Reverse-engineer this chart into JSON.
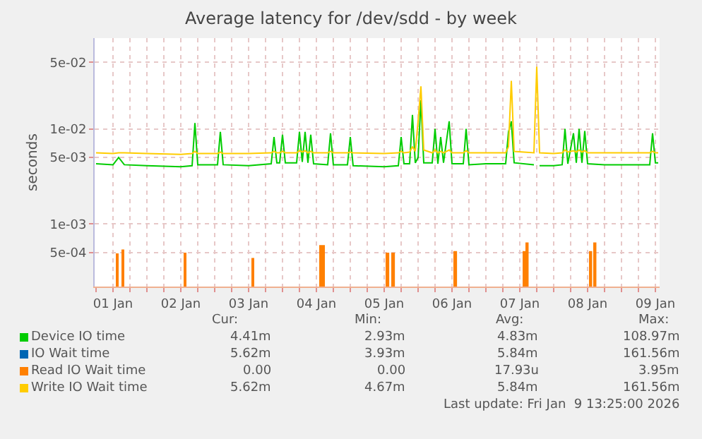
{
  "chart_data": {
    "type": "line",
    "title": "Average latency for /dev/sdd - by week",
    "ylabel": "seconds",
    "log": "y",
    "grid": true,
    "legend": "bottom",
    "line_style": "solid",
    "xlim": [
      "2026-01-01T05:30",
      "2026-01-09T13:30"
    ],
    "xticks": [
      {
        "value": "2026-01-01T06:00",
        "label": null
      },
      {
        "value": "2026-01-01T12:00",
        "label": "01 Jan"
      },
      {
        "value": "2026-01-01T18:00",
        "label": null
      },
      {
        "value": "2026-01-02T00:00",
        "label": null
      },
      {
        "value": "2026-01-02T06:00",
        "label": null
      },
      {
        "value": "2026-01-02T12:00",
        "label": "02 Jan"
      },
      {
        "value": "2026-01-02T18:00",
        "label": null
      },
      {
        "value": "2026-01-03T00:00",
        "label": null
      },
      {
        "value": "2026-01-03T06:00",
        "label": null
      },
      {
        "value": "2026-01-03T12:00",
        "label": "03 Jan"
      },
      {
        "value": "2026-01-03T18:00",
        "label": null
      },
      {
        "value": "2026-01-04T00:00",
        "label": null
      },
      {
        "value": "2026-01-04T06:00",
        "label": null
      },
      {
        "value": "2026-01-04T12:00",
        "label": "04 Jan"
      },
      {
        "value": "2026-01-04T18:00",
        "label": null
      },
      {
        "value": "2026-01-05T00:00",
        "label": null
      },
      {
        "value": "2026-01-05T06:00",
        "label": null
      },
      {
        "value": "2026-01-05T12:00",
        "label": "05 Jan"
      },
      {
        "value": "2026-01-05T18:00",
        "label": null
      },
      {
        "value": "2026-01-06T00:00",
        "label": null
      },
      {
        "value": "2026-01-06T06:00",
        "label": null
      },
      {
        "value": "2026-01-06T12:00",
        "label": "06 Jan"
      },
      {
        "value": "2026-01-06T18:00",
        "label": null
      },
      {
        "value": "2026-01-07T00:00",
        "label": null
      },
      {
        "value": "2026-01-07T06:00",
        "label": null
      },
      {
        "value": "2026-01-07T12:00",
        "label": "07 Jan"
      },
      {
        "value": "2026-01-07T18:00",
        "label": null
      },
      {
        "value": "2026-01-08T00:00",
        "label": null
      },
      {
        "value": "2026-01-08T06:00",
        "label": null
      },
      {
        "value": "2026-01-08T12:00",
        "label": "08 Jan"
      },
      {
        "value": "2026-01-08T18:00",
        "label": null
      },
      {
        "value": "2026-01-09T00:00",
        "label": null
      },
      {
        "value": "2026-01-09T06:00",
        "label": null
      },
      {
        "value": "2026-01-09T12:00",
        "label": "09 Jan"
      }
    ],
    "ylim": [
      0.00022,
      0.09
    ],
    "yticks": [
      {
        "value": 0.0005,
        "label": "5e-04"
      },
      {
        "value": 0.001,
        "label": "1e-03"
      },
      {
        "value": 0.005,
        "label": "5e-03"
      },
      {
        "value": 0.01,
        "label": "1e-02"
      },
      {
        "value": 0.05,
        "label": "5e-02"
      }
    ],
    "x": [
      "2026-01-01T06:00",
      "2026-01-01T12:00",
      "2026-01-01T14:00",
      "2026-01-01T16:00",
      "2026-01-02T00:00",
      "2026-01-02T12:00",
      "2026-01-02T16:00",
      "2026-01-02T17:00",
      "2026-01-02T18:00",
      "2026-01-03T01:00",
      "2026-01-03T02:00",
      "2026-01-03T03:00",
      "2026-01-03T12:00",
      "2026-01-03T20:00",
      "2026-01-03T21:00",
      "2026-01-03T22:00",
      "2026-01-03T23:00",
      "2026-01-04T00:00",
      "2026-01-04T01:00",
      "2026-01-04T05:00",
      "2026-01-04T06:00",
      "2026-01-04T07:00",
      "2026-01-04T08:00",
      "2026-01-04T09:00",
      "2026-01-04T10:00",
      "2026-01-04T11:00",
      "2026-01-04T16:00",
      "2026-01-04T17:00",
      "2026-01-04T18:00",
      "2026-01-04T23:00",
      "2026-01-05T00:00",
      "2026-01-05T01:00",
      "2026-01-05T12:00",
      "2026-01-05T17:00",
      "2026-01-05T18:00",
      "2026-01-05T19:00",
      "2026-01-05T21:00",
      "2026-01-05T22:00",
      "2026-01-05T23:00",
      "2026-01-06T00:00",
      "2026-01-06T01:00",
      "2026-01-06T02:00",
      "2026-01-06T05:00",
      "2026-01-06T06:00",
      "2026-01-06T07:00",
      "2026-01-06T08:00",
      "2026-01-06T09:00",
      "2026-01-06T11:00",
      "2026-01-06T12:00",
      "2026-01-06T16:00",
      "2026-01-06T17:00",
      "2026-01-06T18:00",
      "2026-01-07T00:00",
      "2026-01-07T07:00",
      "2026-01-07T08:00",
      "2026-01-07T09:00",
      "2026-01-07T10:00",
      "2026-01-07T17:00",
      "2026-01-07T18:00",
      "2026-01-07T19:00",
      "2026-01-08T00:00",
      "2026-01-08T03:00",
      "2026-01-08T04:00",
      "2026-01-08T05:00",
      "2026-01-08T07:00",
      "2026-01-08T08:00",
      "2026-01-08T09:00",
      "2026-01-08T10:00",
      "2026-01-08T11:00",
      "2026-01-08T12:00",
      "2026-01-08T18:00",
      "2026-01-09T00:00",
      "2026-01-09T10:00",
      "2026-01-09T11:00",
      "2026-01-09T12:00",
      "2026-01-09T13:00"
    ],
    "series": [
      {
        "name": "Device IO time",
        "color": "#00cc00",
        "values": [
          0.0043,
          0.0042,
          0.005,
          0.0042,
          0.0041,
          0.004,
          0.0041,
          0.0115,
          0.0042,
          0.0042,
          0.0093,
          0.0042,
          0.0041,
          0.0043,
          0.0082,
          0.0044,
          0.0044,
          0.0087,
          0.0044,
          0.0044,
          0.0093,
          0.0045,
          0.0093,
          0.0044,
          0.0087,
          0.0043,
          0.0042,
          0.009,
          0.0042,
          0.0042,
          0.0082,
          0.0041,
          0.004,
          0.0041,
          0.0082,
          0.0043,
          0.0043,
          0.014,
          0.0044,
          0.005,
          0.02,
          0.0044,
          0.0044,
          0.01,
          0.0043,
          0.0082,
          0.0044,
          0.012,
          0.0043,
          0.0043,
          0.01,
          0.0042,
          0.0043,
          0.0043,
          0.0093,
          0.012,
          0.0044,
          0.0042,
          null,
          0.0041,
          0.0041,
          0.0042,
          0.01,
          0.0043,
          0.009,
          0.0044,
          0.01,
          0.0044,
          0.0095,
          0.0043,
          0.0042,
          0.0042,
          0.0042,
          0.009,
          0.0044,
          0.0044
        ]
      },
      {
        "name": "IO Wait time",
        "color": "#0066b3",
        "values": [
          null,
          null,
          null,
          null,
          null,
          null,
          null,
          null,
          null,
          null,
          null,
          null,
          null,
          null,
          null,
          null,
          null,
          null,
          null,
          null,
          null,
          null,
          null,
          null,
          null,
          null,
          null,
          null,
          null,
          null,
          null,
          null,
          null,
          null,
          null,
          null,
          null,
          null,
          null,
          null,
          null,
          null,
          null,
          null,
          null,
          null,
          null,
          null,
          null,
          null,
          null,
          null,
          null,
          null,
          null,
          null,
          null,
          null,
          null,
          null,
          null,
          null,
          null,
          null,
          null,
          null,
          null,
          null,
          null,
          null,
          null,
          null,
          null,
          null,
          null,
          null
        ]
      },
      {
        "name": "Read IO Wait time",
        "color": "#ff8000",
        "type": "bar",
        "x": [
          "2026-01-01T13:30",
          "2026-01-01T15:30",
          "2026-01-02T13:30",
          "2026-01-03T13:30",
          "2026-01-04T13:30",
          "2026-01-04T14:30",
          "2026-01-05T13:20",
          "2026-01-05T15:20",
          "2026-01-06T13:20",
          "2026-01-07T13:40",
          "2026-01-07T14:40",
          "2026-01-08T13:10",
          "2026-01-08T14:40"
        ],
        "values": [
          0.00049,
          0.00054,
          0.0005,
          0.00044,
          0.0006,
          0.0006,
          0.0005,
          0.0005,
          0.00052,
          0.00052,
          0.00064,
          0.00052,
          0.00064
        ]
      },
      {
        "name": "Write IO Wait time",
        "color": "#ffcc00",
        "values": [
          0.0056,
          0.0055,
          0.0056,
          0.0056,
          0.0055,
          0.0054,
          0.0055,
          0.0058,
          0.0055,
          0.0055,
          0.0057,
          0.0055,
          0.0055,
          0.0056,
          0.0058,
          0.0056,
          0.0056,
          0.0058,
          0.0056,
          0.0056,
          0.0059,
          0.0057,
          0.0059,
          0.0056,
          0.0058,
          0.0056,
          0.0056,
          0.0058,
          0.0056,
          0.0056,
          0.0057,
          0.0056,
          0.0055,
          0.0056,
          0.0058,
          0.0056,
          0.0057,
          0.0065,
          0.0058,
          0.012,
          0.028,
          0.006,
          0.0056,
          0.006,
          0.0056,
          0.0058,
          0.0056,
          0.006,
          0.0056,
          0.0056,
          0.0059,
          0.0056,
          0.0056,
          0.0056,
          0.0065,
          0.032,
          0.0058,
          0.0056,
          0.045,
          0.0056,
          0.0055,
          0.0056,
          0.006,
          0.0057,
          0.0059,
          0.0057,
          0.006,
          0.0057,
          0.0059,
          0.0056,
          0.0056,
          0.0056,
          0.0056,
          0.0058,
          0.0056,
          0.0056
        ]
      }
    ],
    "annotations": [
      "Cur:",
      "Min:",
      "Avg:",
      "Max:",
      "4.41m",
      "2.93m",
      "4.83m",
      "108.97m",
      "5.62m",
      "3.93m",
      "5.84m",
      "161.56m",
      "0.00",
      "0.00",
      "17.93u",
      "3.95m",
      "5.62m",
      "4.67m",
      "5.84m",
      "161.56m",
      "Last update: Fri Jan  9 13:25:00 2026"
    ]
  }
}
